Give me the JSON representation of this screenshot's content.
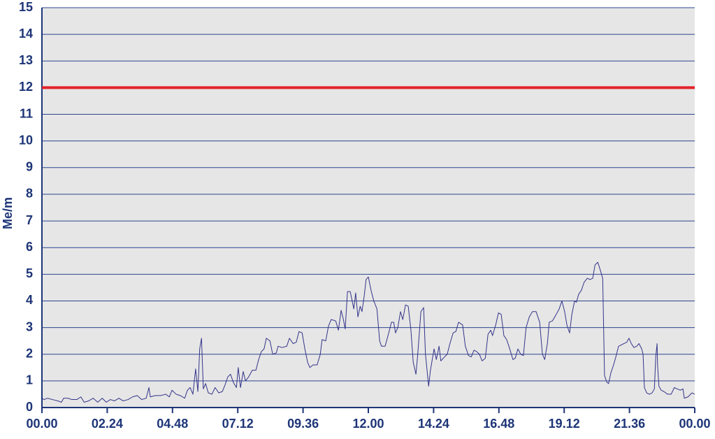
{
  "chart_data": {
    "type": "line",
    "y_label": "Me/m",
    "x": [
      0,
      5,
      12,
      23,
      35,
      43,
      48,
      57,
      66,
      77,
      86,
      93,
      103,
      113,
      123,
      133,
      142,
      151,
      160,
      170,
      179,
      190,
      200,
      210,
      220,
      230,
      236,
      239,
      250,
      262,
      273,
      281,
      287,
      296,
      305,
      315,
      321,
      327,
      333,
      339,
      344,
      348,
      352,
      356,
      361,
      367,
      375,
      382,
      390,
      398,
      404,
      410,
      416,
      422,
      429,
      433,
      438,
      444,
      449,
      456,
      464,
      472,
      478,
      484,
      490,
      495,
      503,
      509,
      517,
      521,
      530,
      540,
      546,
      554,
      561,
      567,
      574,
      580,
      586,
      591,
      598,
      607,
      614,
      618,
      626,
      632,
      638,
      648,
      654,
      660,
      665,
      669,
      674,
      680,
      688,
      692,
      697,
      702,
      706,
      711,
      715,
      720,
      726,
      732,
      739,
      745,
      749,
      757,
      765,
      771,
      776,
      780,
      785,
      791,
      796,
      802,
      808,
      814,
      819,
      825,
      829,
      836,
      842,
      846,
      853,
      857,
      865,
      870,
      876,
      880,
      888,
      894,
      900,
      907,
      913,
      919,
      928,
      934,
      941,
      947,
      953,
      959,
      965,
      971,
      978,
      984,
      990,
      994,
      1001,
      1007,
      1013,
      1019,
      1025,
      1031,
      1039,
      1044,
      1050,
      1056,
      1062,
      1068,
      1075,
      1082,
      1090,
      1098,
      1104,
      1109,
      1115,
      1119,
      1126,
      1133,
      1141,
      1147,
      1153,
      1158,
      1164,
      1169,
      1175,
      1179,
      1184,
      1190,
      1196,
      1203,
      1209,
      1215,
      1220,
      1226,
      1230,
      1237,
      1241,
      1246,
      1250,
      1255,
      1261,
      1266,
      1272,
      1278,
      1284,
      1290,
      1295,
      1300,
      1306,
      1312,
      1317,
      1323,
      1326,
      1329,
      1334,
      1340,
      1346,
      1351,
      1354,
      1357,
      1358,
      1361,
      1366,
      1372,
      1380,
      1388,
      1395,
      1401,
      1408,
      1414,
      1417,
      1425,
      1434,
      1440
    ],
    "values": [
      0.35,
      0.3,
      0.35,
      0.3,
      0.25,
      0.2,
      0.35,
      0.35,
      0.3,
      0.3,
      0.4,
      0.2,
      0.25,
      0.35,
      0.2,
      0.35,
      0.2,
      0.3,
      0.25,
      0.35,
      0.25,
      0.3,
      0.4,
      0.45,
      0.3,
      0.35,
      0.75,
      0.4,
      0.45,
      0.45,
      0.5,
      0.4,
      0.65,
      0.5,
      0.45,
      0.35,
      0.65,
      0.75,
      0.5,
      1.45,
      0.6,
      2.2,
      2.6,
      0.7,
      0.9,
      0.55,
      0.5,
      0.75,
      0.55,
      0.6,
      0.85,
      1.15,
      1.25,
      0.95,
      0.75,
      1.5,
      0.75,
      1.35,
      1.0,
      1.15,
      1.4,
      1.4,
      1.8,
      2.1,
      2.2,
      2.6,
      2.5,
      2.0,
      2.05,
      2.3,
      2.25,
      2.3,
      2.6,
      2.4,
      2.45,
      2.85,
      2.8,
      2.2,
      1.7,
      1.5,
      1.6,
      1.6,
      2.0,
      2.55,
      2.5,
      3.05,
      3.3,
      3.25,
      2.9,
      3.65,
      3.3,
      2.95,
      4.35,
      4.35,
      3.7,
      4.3,
      3.4,
      3.8,
      3.6,
      4.2,
      4.8,
      4.9,
      4.4,
      4.0,
      3.7,
      2.5,
      2.3,
      2.3,
      2.8,
      3.2,
      3.2,
      2.8,
      3.0,
      3.6,
      3.3,
      3.85,
      3.8,
      2.9,
      1.7,
      1.25,
      2.0,
      3.6,
      3.75,
      2.0,
      0.8,
      1.4,
      2.2,
      1.8,
      2.3,
      1.75,
      1.9,
      2.0,
      2.4,
      2.8,
      2.85,
      3.2,
      3.1,
      2.3,
      1.95,
      1.9,
      2.15,
      2.1,
      2.0,
      1.75,
      1.85,
      2.75,
      2.9,
      2.7,
      3.1,
      3.55,
      3.5,
      2.7,
      2.55,
      2.25,
      1.8,
      1.85,
      2.2,
      2.0,
      1.95,
      3.0,
      3.4,
      3.6,
      3.6,
      3.2,
      2.0,
      1.8,
      2.4,
      3.2,
      3.25,
      3.45,
      3.7,
      4.0,
      3.6,
      3.1,
      2.8,
      3.5,
      4.0,
      3.95,
      4.25,
      4.4,
      4.7,
      4.85,
      4.8,
      4.85,
      5.35,
      5.45,
      5.25,
      4.85,
      1.2,
      0.95,
      0.9,
      1.3,
      1.6,
      1.9,
      2.3,
      2.35,
      2.4,
      2.45,
      2.6,
      2.4,
      2.25,
      2.3,
      2.4,
      2.2,
      2.0,
      0.75,
      0.55,
      0.5,
      0.55,
      0.7,
      1.9,
      2.4,
      1.6,
      0.8,
      0.65,
      0.6,
      0.5,
      0.5,
      0.75,
      0.7,
      0.65,
      0.7,
      0.35,
      0.4,
      0.55,
      0.5
    ],
    "color": "#34348a",
    "reference_lines": [
      {
        "value": 12,
        "color": "#e3242b"
      }
    ],
    "xlim": [
      0,
      1440
    ],
    "xticks": [
      {
        "value": 0,
        "label": "00.00"
      },
      {
        "value": 144,
        "label": "02.24"
      },
      {
        "value": 288,
        "label": "04.48"
      },
      {
        "value": 432,
        "label": "07.12"
      },
      {
        "value": 576,
        "label": "09.36"
      },
      {
        "value": 720,
        "label": "12.00"
      },
      {
        "value": 864,
        "label": "14.24"
      },
      {
        "value": 1008,
        "label": "16.48"
      },
      {
        "value": 1152,
        "label": "19.12"
      },
      {
        "value": 1296,
        "label": "21.36"
      },
      {
        "value": 1440,
        "label": "00.00"
      }
    ],
    "ylim": [
      0,
      15
    ],
    "yticks": [
      0,
      1,
      2,
      3,
      4,
      5,
      6,
      7,
      8,
      9,
      10,
      11,
      12,
      13,
      14,
      15
    ],
    "grid": true
  }
}
